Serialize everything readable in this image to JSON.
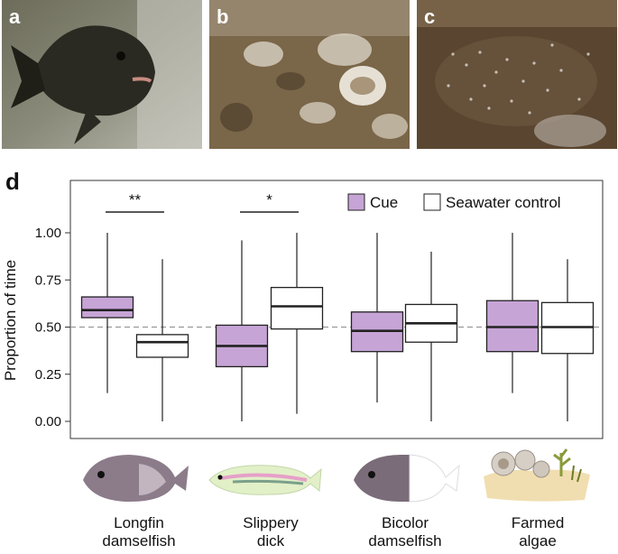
{
  "panels": {
    "a": "a",
    "b": "b",
    "c": "c",
    "d": "d"
  },
  "chart_data": {
    "type": "box",
    "ylabel": "Proportion of time",
    "ylim": [
      0,
      1
    ],
    "yticks": [
      "0.00",
      "0.25",
      "0.50",
      "0.75",
      "1.00"
    ],
    "reference_line": 0.5,
    "legend": {
      "placement": "top-right",
      "entries": [
        "Cue",
        "Seawater control"
      ]
    },
    "series_colors": {
      "Cue": "#c7a4d6",
      "Seawater control": "#ffffff"
    },
    "groups": [
      {
        "label_lines": [
          "Longfin",
          "damselfish"
        ],
        "significance": "**",
        "boxes": [
          {
            "series": "Cue",
            "min": 0.15,
            "q1": 0.55,
            "median": 0.59,
            "q3": 0.66,
            "max": 1.0
          },
          {
            "series": "Seawater control",
            "min": 0.0,
            "q1": 0.34,
            "median": 0.42,
            "q3": 0.46,
            "max": 0.86
          }
        ]
      },
      {
        "label_lines": [
          "Slippery",
          "dick"
        ],
        "significance": "*",
        "boxes": [
          {
            "series": "Cue",
            "min": 0.0,
            "q1": 0.29,
            "median": 0.4,
            "q3": 0.51,
            "max": 0.96
          },
          {
            "series": "Seawater control",
            "min": 0.04,
            "q1": 0.49,
            "median": 0.61,
            "q3": 0.71,
            "max": 1.0
          }
        ]
      },
      {
        "label_lines": [
          "Bicolor",
          "damselfish"
        ],
        "significance": "",
        "boxes": [
          {
            "series": "Cue",
            "min": 0.1,
            "q1": 0.37,
            "median": 0.48,
            "q3": 0.58,
            "max": 1.0
          },
          {
            "series": "Seawater control",
            "min": 0.0,
            "q1": 0.42,
            "median": 0.52,
            "q3": 0.62,
            "max": 0.9
          }
        ]
      },
      {
        "label_lines": [
          "Farmed",
          "algae"
        ],
        "significance": "",
        "boxes": [
          {
            "series": "Cue",
            "min": 0.15,
            "q1": 0.37,
            "median": 0.5,
            "q3": 0.64,
            "max": 1.0
          },
          {
            "series": "Seawater control",
            "min": 0.0,
            "q1": 0.36,
            "median": 0.5,
            "q3": 0.63,
            "max": 0.86
          }
        ]
      }
    ]
  }
}
